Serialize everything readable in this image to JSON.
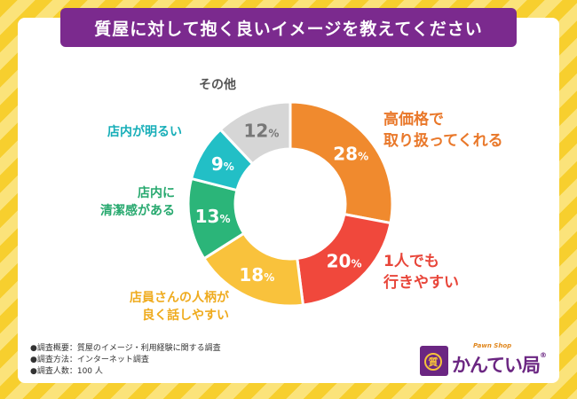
{
  "title": "質屋に対して抱く良いイメージを教えてください",
  "chart_data": {
    "type": "pie",
    "style": "donut",
    "title": "質屋に対して抱く良いイメージを教えてください",
    "unit": "%",
    "slices": [
      {
        "label": "高価格で取り扱ってくれる",
        "label_lines": [
          "高価格で",
          "取り扱ってくれる"
        ],
        "value": 28,
        "display": "28",
        "color": "#f08a2e",
        "label_color": "#e9782a"
      },
      {
        "label": "1人でも行きやすい",
        "label_lines": [
          "1人でも",
          "行きやすい"
        ],
        "value": 20,
        "display": "20",
        "color": "#f0483c",
        "label_color": "#e8463a"
      },
      {
        "label": "店員さんの人柄が良く話しやすい",
        "label_lines": [
          "店員さんの人柄が",
          "良く話しやすい"
        ],
        "value": 18,
        "display": "18",
        "color": "#f9c23c",
        "label_color": "#efab1e"
      },
      {
        "label": "店内に清潔感がある",
        "label_lines": [
          "店内に",
          "清潔感がある"
        ],
        "value": 13,
        "display": "13",
        "color": "#2bb579",
        "label_color": "#28a96f"
      },
      {
        "label": "店内が明るい",
        "label_lines": [
          "店内が明るい"
        ],
        "value": 9,
        "display": "9",
        "color": "#22bfc6",
        "label_color": "#17aeb8"
      },
      {
        "label": "その他",
        "label_lines": [
          "その他"
        ],
        "value": 12,
        "display": "12",
        "color": "#d6d6d6",
        "label_color": "#555555",
        "value_color": "#777777"
      }
    ]
  },
  "notes": [
    "●調査概要：質屋のイメージ・利用経験に関する調査",
    "●調査方法：インターネット調査",
    "●調査人数：100 人"
  ],
  "logo": {
    "mark": "質",
    "sub": "Pawn Shop",
    "name": "かんてい局",
    "registered": "®"
  }
}
